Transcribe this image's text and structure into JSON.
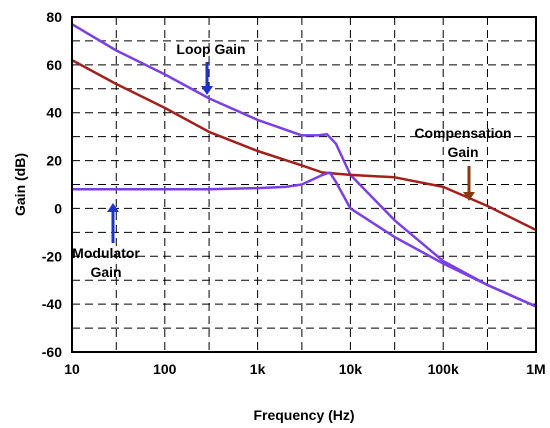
{
  "chart_data": {
    "type": "line",
    "xlabel": "Frequency (Hz)",
    "ylabel": "Gain (dB)",
    "xscale": "log",
    "xlim": [
      10,
      1000000
    ],
    "ylim": [
      -60,
      80
    ],
    "grid": true,
    "x_ticks": [
      {
        "value": 10,
        "label": "10"
      },
      {
        "value": 100,
        "label": "100"
      },
      {
        "value": 1000,
        "label": "1k"
      },
      {
        "value": 10000,
        "label": "10k"
      },
      {
        "value": 100000,
        "label": "100k"
      },
      {
        "value": 1000000,
        "label": "1M"
      }
    ],
    "y_ticks": [
      80,
      60,
      40,
      20,
      0,
      -20,
      -40,
      -60
    ],
    "series": [
      {
        "name": "Loop Gain",
        "color": "#7B3FE4",
        "x": [
          10,
          30,
          100,
          300,
          1000,
          3000,
          4500,
          5600,
          7000,
          10000,
          30000,
          100000,
          300000,
          1000000
        ],
        "y": [
          77,
          66,
          56,
          46,
          37,
          30.5,
          30.5,
          31,
          27,
          14,
          -5,
          -22,
          -32,
          -41
        ]
      },
      {
        "name": "Compensation Gain",
        "color": "#A3201C",
        "x": [
          10,
          30,
          100,
          300,
          1000,
          3000,
          5000,
          10000,
          30000,
          100000,
          300000,
          1000000
        ],
        "y": [
          62,
          52,
          42,
          32,
          24,
          18,
          15,
          14,
          13,
          9,
          1,
          -9
        ]
      },
      {
        "name": "Modulator Gain",
        "color": "#7B3FE4",
        "x": [
          10,
          100,
          300,
          1000,
          2000,
          3000,
          5000,
          6000,
          7000,
          10000,
          30000,
          100000,
          300000,
          1000000
        ],
        "y": [
          8,
          8,
          8,
          8.5,
          9,
          10,
          14,
          15,
          11,
          0,
          -12,
          -23,
          -32,
          -41
        ]
      }
    ],
    "annotations": [
      {
        "lines": [
          "Loop Gain"
        ],
        "arrow_color": "#1E33CC"
      },
      {
        "lines": [
          "Compensation",
          "Gain"
        ],
        "arrow_color": "#8B3A10"
      },
      {
        "lines": [
          "Modulator",
          "Gain"
        ],
        "arrow_color": "#1E33CC"
      }
    ]
  }
}
